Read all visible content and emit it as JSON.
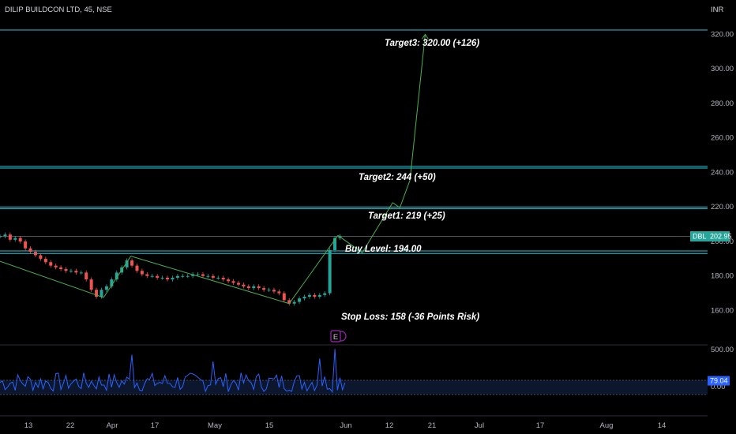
{
  "header": {
    "title": "DILIP BUILDCON LTD, 45, NSE",
    "currency": "INR"
  },
  "colors": {
    "background": "#000000",
    "level_line": "#26c6da",
    "trend_line": "#4caf50",
    "candle_up": "#26a69a",
    "candle_down": "#ef5350",
    "volume_line": "#2962ff",
    "price_tag": "#26a69a"
  },
  "chart_data": {
    "type": "candlestick",
    "price_axis": {
      "ticks": [
        "320.00",
        "300.00",
        "280.00",
        "260.00",
        "240.00",
        "220.00",
        "200.00",
        "180.00",
        "160.00"
      ],
      "range": [
        150,
        328
      ]
    },
    "time_axis": {
      "ticks": [
        "13",
        "22",
        "Apr",
        "17",
        "May",
        "15",
        "Jun",
        "12",
        "21",
        "Jul",
        "17",
        "Aug",
        "14"
      ]
    },
    "symbol_tag": {
      "symbol": "DBL",
      "price": "202.95",
      "value": 202.95
    },
    "levels": [
      {
        "name": "target3",
        "value": 322.5
      },
      {
        "name": "target2-a",
        "value": 243.5
      },
      {
        "name": "target2-b",
        "value": 242.5
      },
      {
        "name": "target1-a",
        "value": 220.0
      },
      {
        "name": "target1-b",
        "value": 219.0
      },
      {
        "name": "current",
        "value": 203.0
      },
      {
        "name": "buy-a",
        "value": 194.5
      },
      {
        "name": "buy-b",
        "value": 193.0
      }
    ],
    "annotations": {
      "target3": "Target3: 320.00 (+126)",
      "target2": "Target2: 244 (+50)",
      "target1": "Target1: 219 (+25)",
      "buy": "Buy Level: 194.00",
      "stop": "Stop Loss: 158 (-36 Points Risk)"
    },
    "earnings_marker": "E",
    "oscillator": {
      "ticks": [
        "500.00",
        "0.00"
      ],
      "current_value": "79.04",
      "value": 79.04,
      "range": [
        -200,
        560
      ]
    },
    "price_path": [
      [
        0,
        203
      ],
      [
        0.5,
        204
      ],
      [
        1,
        201
      ],
      [
        1.5,
        202
      ],
      [
        2,
        200
      ],
      [
        2.5,
        196
      ],
      [
        3,
        194
      ],
      [
        3.5,
        192
      ],
      [
        4,
        190
      ],
      [
        4.5,
        188
      ],
      [
        5,
        186
      ],
      [
        5.5,
        185
      ],
      [
        6,
        184
      ],
      [
        6.5,
        183
      ],
      [
        7,
        183
      ],
      [
        7.5,
        182
      ],
      [
        8,
        182
      ],
      [
        8.5,
        178
      ],
      [
        9,
        172
      ],
      [
        9.5,
        168
      ],
      [
        10,
        172
      ],
      [
        10.5,
        174
      ],
      [
        11,
        178
      ],
      [
        11.5,
        182
      ],
      [
        12,
        185
      ],
      [
        12.5,
        189
      ],
      [
        13,
        186
      ],
      [
        13.5,
        183
      ],
      [
        14,
        181
      ],
      [
        14.5,
        180
      ],
      [
        15,
        180
      ],
      [
        15.5,
        179
      ],
      [
        16,
        179
      ],
      [
        16.5,
        178
      ],
      [
        17,
        179
      ],
      [
        17.5,
        180
      ],
      [
        18,
        180
      ],
      [
        18.5,
        180
      ],
      [
        19,
        181
      ],
      [
        19.5,
        181
      ],
      [
        20,
        180
      ],
      [
        20.5,
        180
      ],
      [
        21,
        179
      ],
      [
        21.5,
        179
      ],
      [
        22,
        178
      ],
      [
        22.5,
        177
      ],
      [
        23,
        176
      ],
      [
        23.5,
        175
      ],
      [
        24,
        174
      ],
      [
        24.5,
        173
      ],
      [
        25,
        174
      ],
      [
        25.5,
        173
      ],
      [
        26,
        172
      ],
      [
        26.5,
        172
      ],
      [
        27,
        171
      ],
      [
        27.5,
        170
      ],
      [
        28,
        166
      ],
      [
        28.5,
        164
      ],
      [
        29,
        165
      ],
      [
        29.5,
        167
      ],
      [
        30,
        168
      ],
      [
        30.5,
        169
      ],
      [
        31,
        168
      ],
      [
        31.5,
        169
      ],
      [
        32,
        170
      ],
      [
        32.5,
        195
      ],
      [
        33,
        202
      ],
      [
        33.5,
        203
      ]
    ],
    "trend_lines": [
      [
        [
          0,
          188.5
        ],
        [
          10.2,
          167.5
        ]
      ],
      [
        [
          10.2,
          167.5
        ],
        [
          12.9,
          191.5
        ]
      ],
      [
        [
          12.9,
          191.5
        ],
        [
          28.5,
          164
        ]
      ],
      [
        [
          28.5,
          164
        ],
        [
          33.3,
          203.5
        ]
      ],
      [
        [
          33.3,
          203.5
        ],
        [
          35.7,
          193.5
        ]
      ],
      [
        [
          35.7,
          193.5
        ],
        [
          38.7,
          222.5
        ]
      ],
      [
        [
          38.7,
          222.5
        ],
        [
          39.4,
          219.5
        ]
      ],
      [
        [
          39.4,
          219.5
        ],
        [
          40.4,
          235.5
        ]
      ],
      [
        [
          40.4,
          235.5
        ],
        [
          41.9,
          320
        ]
      ]
    ],
    "volume_spikes": [
      [
        6.5,
        150
      ],
      [
        12,
        80
      ],
      [
        13,
        430
      ],
      [
        21,
        340
      ],
      [
        25.5,
        170
      ],
      [
        31.5,
        380
      ],
      [
        33,
        510
      ],
      [
        33.5,
        120
      ]
    ]
  }
}
